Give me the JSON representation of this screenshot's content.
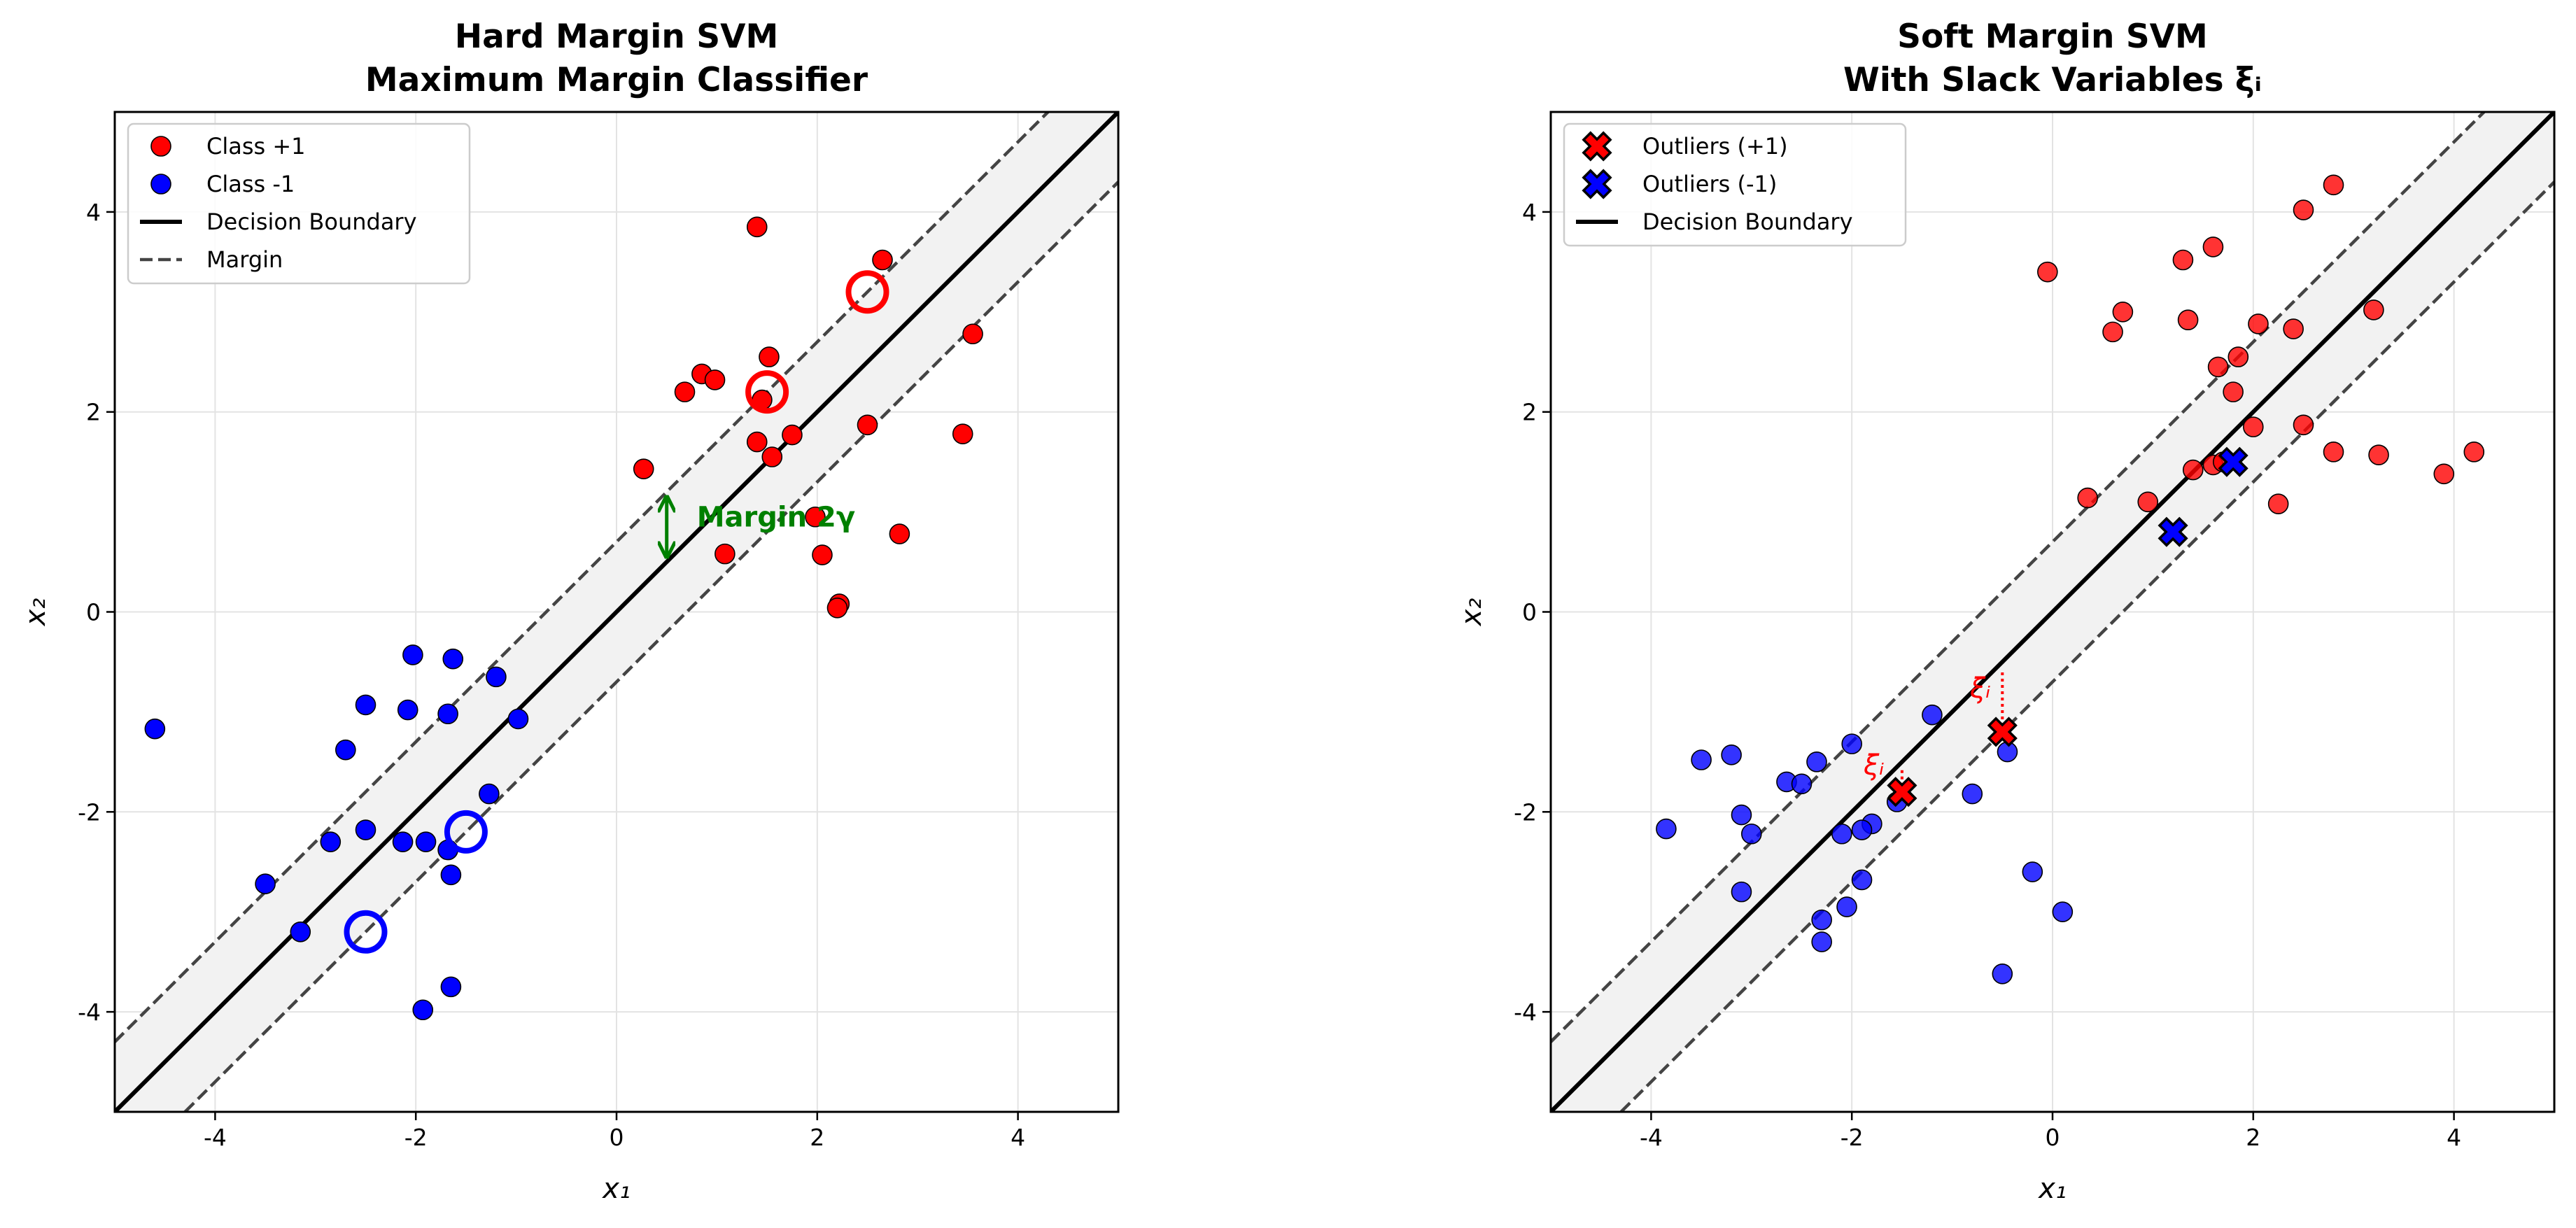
{
  "chart_data": [
    {
      "type": "scatter",
      "title": [
        "Hard Margin SVM",
        "Maximum Margin Classifier"
      ],
      "xlabel": "x₁",
      "ylabel": "x₂",
      "xlim": [
        -5,
        5
      ],
      "ylim": [
        -5,
        5
      ],
      "xticks": [
        -4,
        -2,
        0,
        2,
        4
      ],
      "yticks": [
        -4,
        -2,
        0,
        2,
        4
      ],
      "grid": true,
      "legend": "upper left",
      "band_color": "#f2f2f2",
      "series": [
        {
          "name": "Class +1",
          "color": "red",
          "marker": "o",
          "alpha": 1,
          "x": [
            1.4,
            2.65,
            3.55,
            1.52,
            0.68,
            0.85,
            0.98,
            1.45,
            1.4,
            1.55,
            1.75,
            2.5,
            3.45,
            0.27,
            1.08,
            1.98,
            2.05,
            2.82,
            2.22,
            2.2
          ],
          "y": [
            3.85,
            3.52,
            2.78,
            2.55,
            2.2,
            2.38,
            2.32,
            2.12,
            1.7,
            1.55,
            1.77,
            1.87,
            1.78,
            1.43,
            0.58,
            0.95,
            0.57,
            0.78,
            0.08,
            0.04
          ]
        },
        {
          "name": "Class -1",
          "color": "blue",
          "marker": "o",
          "alpha": 1,
          "x": [
            -4.6,
            -2.03,
            -1.63,
            -1.2,
            -2.5,
            -2.08,
            -1.68,
            -0.98,
            -2.7,
            -1.27,
            -2.5,
            -2.85,
            -2.13,
            -1.9,
            -1.68,
            -1.65,
            -3.5,
            -3.15,
            -1.93,
            -1.65
          ],
          "y": [
            -1.17,
            -0.43,
            -0.47,
            -0.65,
            -0.93,
            -0.98,
            -1.02,
            -1.07,
            -1.38,
            -1.82,
            -2.18,
            -2.3,
            -2.3,
            -2.3,
            -2.38,
            -2.63,
            -2.72,
            -3.2,
            -3.98,
            -3.75
          ]
        }
      ],
      "lines": [
        {
          "name": "Decision Boundary",
          "color": "black",
          "style": "solid",
          "x": [
            -5,
            5
          ],
          "y": [
            -5,
            5
          ]
        },
        {
          "name": "Margin",
          "color": "#444444",
          "style": "dashed",
          "x": [
            -5,
            4.3
          ],
          "y": [
            -4.3,
            5
          ]
        },
        {
          "color": "#444444",
          "style": "dashed",
          "x": [
            -4.3,
            5
          ],
          "y": [
            -5,
            4.3
          ]
        }
      ],
      "support_vectors": [
        {
          "color": "red",
          "x": [
            2.5,
            1.5
          ],
          "y": [
            3.2,
            2.2
          ]
        },
        {
          "color": "blue",
          "x": [
            -1.5,
            -2.5
          ],
          "y": [
            -2.2,
            -3.2
          ]
        }
      ],
      "annotations": [
        {
          "text": "Margin 2γ",
          "color": "green",
          "x": 0.8,
          "y": 0.93,
          "arrow_x": 0.5,
          "arrow_y": [
            0.55,
            1.15
          ]
        }
      ]
    },
    {
      "type": "scatter",
      "title": [
        "Soft Margin SVM",
        "With Slack Variables ξᵢ"
      ],
      "xlabel": "x₁",
      "ylabel": "x₂",
      "xlim": [
        -5,
        5
      ],
      "ylim": [
        -5,
        5
      ],
      "xticks": [
        -4,
        -2,
        0,
        2,
        4
      ],
      "yticks": [
        -4,
        -2,
        0,
        2,
        4
      ],
      "grid": true,
      "legend": "upper left",
      "band_color": "#f2f2f2",
      "series": [
        {
          "color": "red",
          "marker": "o",
          "alpha": 0.8,
          "x": [
            -0.05,
            2.8,
            2.5,
            1.6,
            1.3,
            0.7,
            0.6,
            1.35,
            2.05,
            2.4,
            3.2,
            1.65,
            1.85,
            1.8,
            2.0,
            2.5,
            0.35,
            0.95,
            1.4,
            1.6,
            1.7,
            2.8,
            3.25,
            3.9,
            4.2,
            2.25
          ],
          "y": [
            3.4,
            4.27,
            4.02,
            3.65,
            3.52,
            3.0,
            2.8,
            2.92,
            2.88,
            2.83,
            3.02,
            2.45,
            2.55,
            2.2,
            1.85,
            1.87,
            1.14,
            1.1,
            1.42,
            1.47,
            1.5,
            1.6,
            1.57,
            1.38,
            1.6,
            1.08
          ]
        },
        {
          "color": "blue",
          "marker": "o",
          "alpha": 0.8,
          "x": [
            -3.85,
            -3.5,
            -3.2,
            -3.1,
            -3.0,
            -3.1,
            -2.65,
            -2.5,
            -2.35,
            -2.0,
            -1.8,
            -1.9,
            -2.1,
            -1.9,
            -2.05,
            -2.3,
            -2.3,
            -1.55,
            -1.2,
            -0.8,
            -0.45,
            -0.2,
            0.1,
            -0.5
          ],
          "y": [
            -2.17,
            -1.48,
            -1.43,
            -2.03,
            -2.22,
            -2.8,
            -1.7,
            -1.72,
            -1.5,
            -1.32,
            -2.12,
            -2.18,
            -2.22,
            -2.68,
            -2.95,
            -3.08,
            -3.3,
            -1.9,
            -1.03,
            -1.82,
            -1.4,
            -2.6,
            -3.0,
            -3.62
          ]
        },
        {
          "name": "Outliers (+1)",
          "color": "red",
          "marker": "X",
          "alpha": 1,
          "x": [
            -1.5,
            -0.5
          ],
          "y": [
            -1.8,
            -1.2
          ]
        },
        {
          "name": "Outliers (-1)",
          "color": "blue",
          "marker": "X",
          "alpha": 1,
          "x": [
            1.2,
            1.8
          ],
          "y": [
            0.8,
            1.5
          ]
        }
      ],
      "lines": [
        {
          "name": "Decision Boundary",
          "color": "black",
          "style": "solid",
          "x": [
            -5,
            5
          ],
          "y": [
            -5,
            5
          ]
        },
        {
          "color": "#444444",
          "style": "dashed",
          "x": [
            -5,
            4.3
          ],
          "y": [
            -4.3,
            5
          ]
        },
        {
          "color": "#444444",
          "style": "dashed",
          "x": [
            -4.3,
            5
          ],
          "y": [
            -5,
            4.3
          ]
        }
      ],
      "slacks": [
        {
          "label": "ξᵢ",
          "color": "red",
          "x": -1.5,
          "y": [
            -1.8,
            -1.55
          ],
          "label_x": -1.78,
          "label_y": -1.55
        },
        {
          "label": "ξᵢ",
          "color": "red",
          "x": -0.5,
          "y": [
            -1.2,
            -0.6
          ],
          "label_x": -0.72,
          "label_y": -0.78
        }
      ]
    }
  ]
}
